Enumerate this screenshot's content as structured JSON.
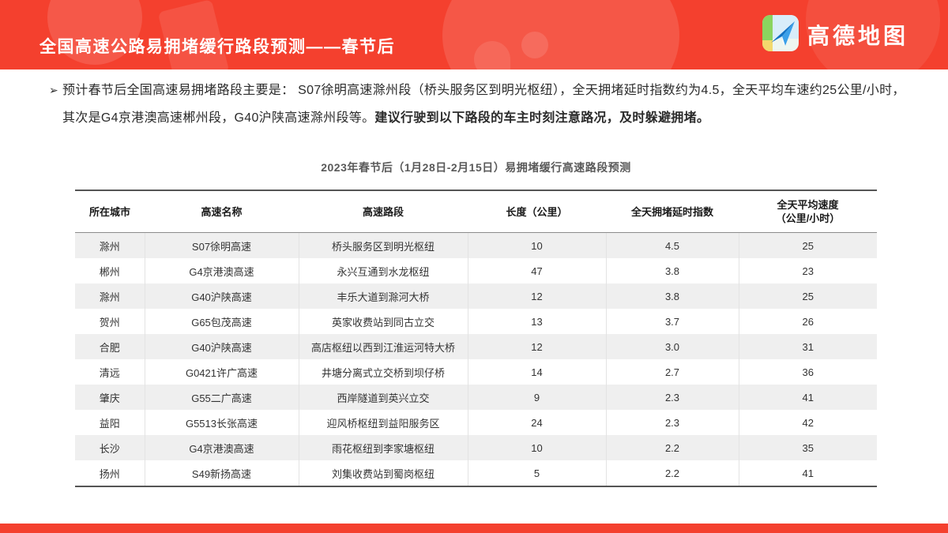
{
  "header": {
    "title": "全国高速公路易拥堵缓行路段预测——春节后",
    "logo_text": "高德地图",
    "logo_icon": "paper-plane-map-icon"
  },
  "colors": {
    "brand_red": "#f4402e",
    "row_stripe": "#efefef",
    "plane_blue_dark": "#1272c4",
    "plane_blue_light": "#3ba0e9",
    "table_border_dark": "#555555"
  },
  "summary": {
    "bullet": "➢",
    "text_normal": "预计春节后全国高速易拥堵路段主要是： S07徐明高速滁州段（桥头服务区到明光枢纽），全天拥堵延时指数约为4.5，全天平均车速约25公里/小时，其次是G4京港澳高速郴州段，G40沪陕高速滁州段等。",
    "text_bold": "建议行驶到以下路段的车主时刻注意路况，及时躲避拥堵。"
  },
  "table": {
    "title": "2023年春节后（1月28日-2月15日）易拥堵缓行高速路段预测",
    "columns": [
      "所在城市",
      "高速名称",
      "高速路段",
      "长度（公里）",
      "全天拥堵延时指数",
      "全天平均速度\n（公里/小时）"
    ],
    "rows": [
      {
        "city": "滁州",
        "road": "S07徐明高速",
        "segment": "桥头服务区到明光枢纽",
        "length": "10",
        "delay_index": "4.5",
        "avg_speed": "25"
      },
      {
        "city": "郴州",
        "road": "G4京港澳高速",
        "segment": "永兴互通到水龙枢纽",
        "length": "47",
        "delay_index": "3.8",
        "avg_speed": "23"
      },
      {
        "city": "滁州",
        "road": "G40沪陕高速",
        "segment": "丰乐大道到滁河大桥",
        "length": "12",
        "delay_index": "3.8",
        "avg_speed": "25"
      },
      {
        "city": "贺州",
        "road": "G65包茂高速",
        "segment": "英家收费站到同古立交",
        "length": "13",
        "delay_index": "3.7",
        "avg_speed": "26"
      },
      {
        "city": "合肥",
        "road": "G40沪陕高速",
        "segment": "高店枢纽以西到江淮运河特大桥",
        "length": "12",
        "delay_index": "3.0",
        "avg_speed": "31"
      },
      {
        "city": "清远",
        "road": "G0421许广高速",
        "segment": "井塘分离式立交桥到坝仔桥",
        "length": "14",
        "delay_index": "2.7",
        "avg_speed": "36"
      },
      {
        "city": "肇庆",
        "road": "G55二广高速",
        "segment": "西岸隧道到英兴立交",
        "length": "9",
        "delay_index": "2.3",
        "avg_speed": "41"
      },
      {
        "city": "益阳",
        "road": "G5513长张高速",
        "segment": "迎风桥枢纽到益阳服务区",
        "length": "24",
        "delay_index": "2.3",
        "avg_speed": "42"
      },
      {
        "city": "长沙",
        "road": "G4京港澳高速",
        "segment": "雨花枢纽到李家塘枢纽",
        "length": "10",
        "delay_index": "2.2",
        "avg_speed": "35"
      },
      {
        "city": "扬州",
        "road": "S49新扬高速",
        "segment": "刘集收费站到蜀岗枢纽",
        "length": "5",
        "delay_index": "2.2",
        "avg_speed": "41"
      }
    ]
  }
}
